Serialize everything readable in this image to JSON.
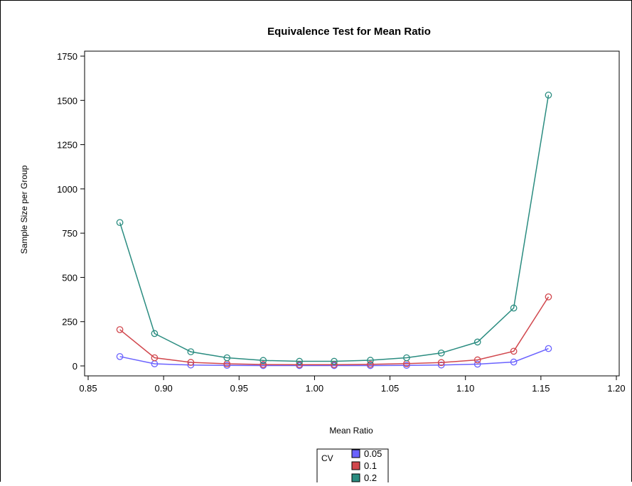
{
  "chart_data": {
    "type": "line",
    "title": "Equivalence Test for Mean Ratio",
    "xlabel": "Mean Ratio",
    "ylabel": "Sample Size per Group",
    "xlim": [
      0.85,
      1.2
    ],
    "ylim": [
      0,
      1750
    ],
    "xticks": [
      "0.85",
      "0.90",
      "0.95",
      "1.00",
      "1.05",
      "1.10",
      "1.15",
      "1.20"
    ],
    "yticks": [
      "0",
      "250",
      "500",
      "750",
      "1000",
      "1250",
      "1500",
      "1750"
    ],
    "grid": false,
    "legend": {
      "position": "bottom-center",
      "title": "CV"
    },
    "x": [
      0.871,
      0.894,
      0.918,
      0.942,
      0.966,
      0.99,
      1.013,
      1.037,
      1.061,
      1.084,
      1.108,
      1.132,
      1.155
    ],
    "series": [
      {
        "name": "0.05",
        "color": "#6a62ff",
        "values": [
          53,
          12,
          5,
          3,
          2,
          2,
          2,
          2,
          3,
          5,
          10,
          22,
          98
        ]
      },
      {
        "name": "0.1",
        "color": "#d1474d",
        "values": [
          205,
          46,
          20,
          12,
          8,
          7,
          7,
          9,
          13,
          19,
          34,
          83,
          390
        ]
      },
      {
        "name": "0.2",
        "color": "#2a8c80",
        "values": [
          810,
          183,
          80,
          46,
          31,
          26,
          26,
          32,
          46,
          73,
          135,
          327,
          1530
        ]
      }
    ]
  }
}
